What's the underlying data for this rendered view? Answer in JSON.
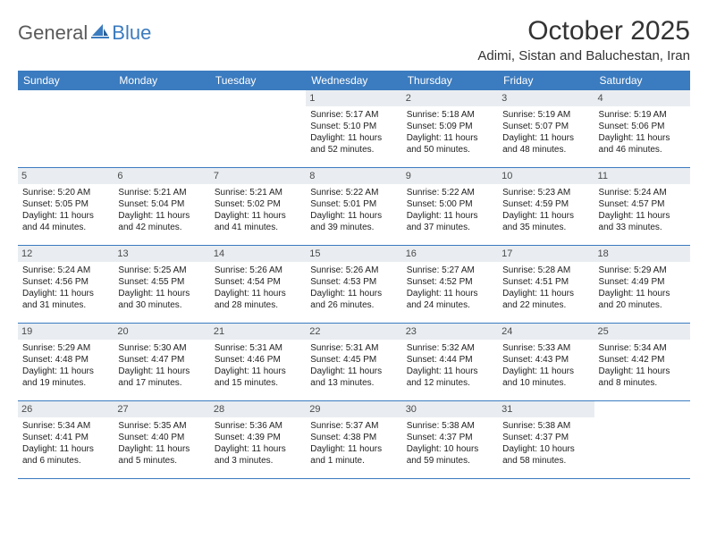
{
  "logo": {
    "part1": "General",
    "part2": "Blue"
  },
  "title": "October 2025",
  "location": "Adimi, Sistan and Baluchestan, Iran",
  "colors": {
    "header_bg": "#3b7bbf",
    "daynum_bg": "#e9edf1",
    "row_border": "#3b7bbf",
    "text": "#222222",
    "logo_gray": "#5a5a5a",
    "logo_blue": "#3b7bbf"
  },
  "dow": [
    "Sunday",
    "Monday",
    "Tuesday",
    "Wednesday",
    "Thursday",
    "Friday",
    "Saturday"
  ],
  "weeks": [
    [
      null,
      null,
      null,
      {
        "n": "1",
        "sr": "5:17 AM",
        "ss": "5:10 PM",
        "dl": "11 hours and 52 minutes."
      },
      {
        "n": "2",
        "sr": "5:18 AM",
        "ss": "5:09 PM",
        "dl": "11 hours and 50 minutes."
      },
      {
        "n": "3",
        "sr": "5:19 AM",
        "ss": "5:07 PM",
        "dl": "11 hours and 48 minutes."
      },
      {
        "n": "4",
        "sr": "5:19 AM",
        "ss": "5:06 PM",
        "dl": "11 hours and 46 minutes."
      }
    ],
    [
      {
        "n": "5",
        "sr": "5:20 AM",
        "ss": "5:05 PM",
        "dl": "11 hours and 44 minutes."
      },
      {
        "n": "6",
        "sr": "5:21 AM",
        "ss": "5:04 PM",
        "dl": "11 hours and 42 minutes."
      },
      {
        "n": "7",
        "sr": "5:21 AM",
        "ss": "5:02 PM",
        "dl": "11 hours and 41 minutes."
      },
      {
        "n": "8",
        "sr": "5:22 AM",
        "ss": "5:01 PM",
        "dl": "11 hours and 39 minutes."
      },
      {
        "n": "9",
        "sr": "5:22 AM",
        "ss": "5:00 PM",
        "dl": "11 hours and 37 minutes."
      },
      {
        "n": "10",
        "sr": "5:23 AM",
        "ss": "4:59 PM",
        "dl": "11 hours and 35 minutes."
      },
      {
        "n": "11",
        "sr": "5:24 AM",
        "ss": "4:57 PM",
        "dl": "11 hours and 33 minutes."
      }
    ],
    [
      {
        "n": "12",
        "sr": "5:24 AM",
        "ss": "4:56 PM",
        "dl": "11 hours and 31 minutes."
      },
      {
        "n": "13",
        "sr": "5:25 AM",
        "ss": "4:55 PM",
        "dl": "11 hours and 30 minutes."
      },
      {
        "n": "14",
        "sr": "5:26 AM",
        "ss": "4:54 PM",
        "dl": "11 hours and 28 minutes."
      },
      {
        "n": "15",
        "sr": "5:26 AM",
        "ss": "4:53 PM",
        "dl": "11 hours and 26 minutes."
      },
      {
        "n": "16",
        "sr": "5:27 AM",
        "ss": "4:52 PM",
        "dl": "11 hours and 24 minutes."
      },
      {
        "n": "17",
        "sr": "5:28 AM",
        "ss": "4:51 PM",
        "dl": "11 hours and 22 minutes."
      },
      {
        "n": "18",
        "sr": "5:29 AM",
        "ss": "4:49 PM",
        "dl": "11 hours and 20 minutes."
      }
    ],
    [
      {
        "n": "19",
        "sr": "5:29 AM",
        "ss": "4:48 PM",
        "dl": "11 hours and 19 minutes."
      },
      {
        "n": "20",
        "sr": "5:30 AM",
        "ss": "4:47 PM",
        "dl": "11 hours and 17 minutes."
      },
      {
        "n": "21",
        "sr": "5:31 AM",
        "ss": "4:46 PM",
        "dl": "11 hours and 15 minutes."
      },
      {
        "n": "22",
        "sr": "5:31 AM",
        "ss": "4:45 PM",
        "dl": "11 hours and 13 minutes."
      },
      {
        "n": "23",
        "sr": "5:32 AM",
        "ss": "4:44 PM",
        "dl": "11 hours and 12 minutes."
      },
      {
        "n": "24",
        "sr": "5:33 AM",
        "ss": "4:43 PM",
        "dl": "11 hours and 10 minutes."
      },
      {
        "n": "25",
        "sr": "5:34 AM",
        "ss": "4:42 PM",
        "dl": "11 hours and 8 minutes."
      }
    ],
    [
      {
        "n": "26",
        "sr": "5:34 AM",
        "ss": "4:41 PM",
        "dl": "11 hours and 6 minutes."
      },
      {
        "n": "27",
        "sr": "5:35 AM",
        "ss": "4:40 PM",
        "dl": "11 hours and 5 minutes."
      },
      {
        "n": "28",
        "sr": "5:36 AM",
        "ss": "4:39 PM",
        "dl": "11 hours and 3 minutes."
      },
      {
        "n": "29",
        "sr": "5:37 AM",
        "ss": "4:38 PM",
        "dl": "11 hours and 1 minute."
      },
      {
        "n": "30",
        "sr": "5:38 AM",
        "ss": "4:37 PM",
        "dl": "10 hours and 59 minutes."
      },
      {
        "n": "31",
        "sr": "5:38 AM",
        "ss": "4:37 PM",
        "dl": "10 hours and 58 minutes."
      },
      null
    ]
  ],
  "labels": {
    "sunrise": "Sunrise:",
    "sunset": "Sunset:",
    "daylight": "Daylight:"
  }
}
